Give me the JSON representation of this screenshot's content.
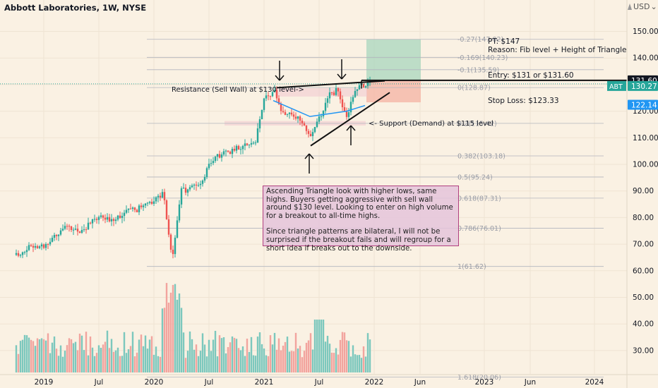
{
  "header": {
    "title": "Abbott Laboratories, 1W, NYSE",
    "currency": "USD",
    "currency_caret": "⌄",
    "flag_icon": "flag-icon"
  },
  "colors": {
    "up": "#26a69a",
    "down": "#ef5350",
    "up_vol": "#7cc8bd",
    "down_vol": "#f2a49e",
    "ma": "#2196f3",
    "background": "#faf1e3",
    "text": "#131722",
    "fib_line": "#b2b5be",
    "target_zone": "#a8d5bd",
    "stop_zone": "#f5b7a6"
  },
  "annotations": {
    "pt": "PT: $147",
    "reason": "Reason: Fib level + Height of Triangle",
    "entry": "Entry: $131 or $131.60",
    "stop": "Stop Loss: $123.33",
    "resistance": "Resistance (Sell Wall) at $130 level->",
    "support": "<- Support (Demand) at $115 level",
    "note_p1": "Ascending Triangle look with higher lows, same highs. Buyers getting aggressive with sell wall around $130 level. Looking to enter on high volume for a breakout to all-time highs.",
    "note_p2": "Since triangle patterns are bilateral, I will not be surprised if the breakout fails and will regroup for a short idea if breaks out to the downside."
  },
  "price_tags": {
    "entry": "131.60",
    "abt_label": "ABT",
    "abt": "130.27",
    "ma": "122.14"
  },
  "chart_data": {
    "type": "candlestick",
    "title": "Abbott Laboratories, 1W, NYSE",
    "y_axis": {
      "ticks": [
        150,
        140,
        130,
        120,
        110,
        100,
        90,
        80,
        70,
        60,
        50,
        40,
        30
      ],
      "labels": [
        "150.00",
        "140.00",
        "130.00",
        "120.00",
        "110.00",
        "100.00",
        "90.00",
        "80.00",
        "70.00",
        "60.00",
        "50.00",
        "40.00",
        "30.00"
      ]
    },
    "x_axis": {
      "labels": [
        "2019",
        "Jul",
        "2020",
        "Jul",
        "2021",
        "Jul",
        "2022",
        "Jun",
        "2023",
        "Jun",
        "2024"
      ]
    },
    "fib_levels": [
      {
        "label": "-0.27(147.02)",
        "value": 147.02
      },
      {
        "label": "-0.169(140.23)",
        "value": 140.23
      },
      {
        "label": "-0.1(135.59)",
        "value": 135.59
      },
      {
        "label": "0(128.87)",
        "value": 128.87
      },
      {
        "label": "0.2(115.42)",
        "value": 115.42
      },
      {
        "label": "0.382(103.18)",
        "value": 103.18
      },
      {
        "label": "0.5(95.24)",
        "value": 95.24
      },
      {
        "label": "0.618(87.31)",
        "value": 87.31
      },
      {
        "label": "0.786(76.01)",
        "value": 76.01
      },
      {
        "label": "1(61.62)",
        "value": 61.62
      },
      {
        "label": "1.618(20.06)",
        "value": 20.06
      }
    ],
    "price_path": [
      [
        "2018-10",
        66
      ],
      [
        "2018-12",
        70
      ],
      [
        "2019-01",
        69
      ],
      [
        "2019-03",
        76
      ],
      [
        "2019-05",
        75
      ],
      [
        "2019-07",
        80
      ],
      [
        "2019-08",
        79
      ],
      [
        "2019-10",
        82
      ],
      [
        "2019-12",
        84
      ],
      [
        "2020-02",
        89
      ],
      [
        "2020-03",
        65
      ],
      [
        "2020-04",
        90
      ],
      [
        "2020-06",
        92
      ],
      [
        "2020-07",
        100
      ],
      [
        "2020-08",
        103
      ],
      [
        "2020-10",
        106
      ],
      [
        "2020-12",
        108
      ],
      [
        "2021-01",
        124
      ],
      [
        "2021-02",
        128
      ],
      [
        "2021-03",
        120
      ],
      [
        "2021-05",
        117
      ],
      [
        "2021-06",
        110
      ],
      [
        "2021-07",
        117
      ],
      [
        "2021-08",
        126
      ],
      [
        "2021-09",
        128
      ],
      [
        "2021-10",
        118
      ],
      [
        "2021-11",
        128
      ],
      [
        "2021-12",
        130.27
      ]
    ],
    "moving_average": [
      [
        "2021-02",
        124
      ],
      [
        "2021-04",
        121
      ],
      [
        "2021-06",
        118
      ],
      [
        "2021-08",
        119
      ],
      [
        "2021-10",
        120
      ],
      [
        "2021-12",
        122.14
      ]
    ],
    "last_price": 130.27,
    "entry": 131.6,
    "target": 147,
    "stop": 123.33
  }
}
